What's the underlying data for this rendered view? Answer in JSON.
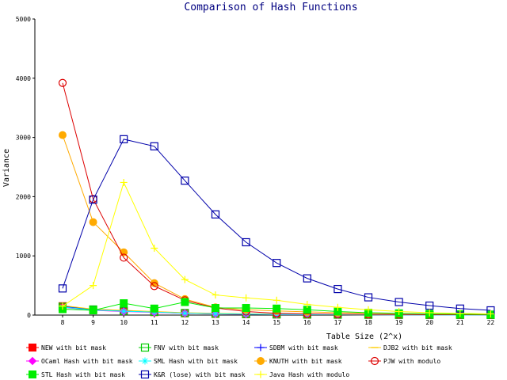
{
  "chart_data": {
    "type": "line",
    "title": "Comparison of Hash Functions",
    "xlabel": "Table Size (2^x)",
    "ylabel": "Variance",
    "x": [
      8,
      9,
      10,
      11,
      12,
      13,
      14,
      15,
      16,
      17,
      18,
      19,
      20,
      21,
      22
    ],
    "xticks": [
      "8",
      "9",
      "10",
      "11",
      "12",
      "13",
      "14",
      "15",
      "16",
      "17",
      "18",
      "19",
      "20",
      "21",
      "22"
    ],
    "yticks": [
      "0",
      "1000",
      "2000",
      "3000",
      "4000",
      "5000"
    ],
    "ylim": [
      0,
      5000
    ],
    "grid": false,
    "legend_position": "bottom",
    "series": [
      {
        "name": "NEW with bit mask",
        "color": "#ff0000",
        "marker": "filled-square",
        "values": [
          150,
          90,
          70,
          50,
          30,
          20,
          15,
          10,
          8,
          6,
          5,
          4,
          3,
          3,
          2
        ]
      },
      {
        "name": "FNV with bit mask",
        "color": "#00cc00",
        "marker": "open-square",
        "values": [
          140,
          95,
          70,
          55,
          35,
          25,
          18,
          12,
          9,
          7,
          5,
          4,
          3,
          3,
          2
        ]
      },
      {
        "name": "SDBM with bit mask",
        "color": "#0000ff",
        "marker": "plus",
        "values": [
          145,
          90,
          75,
          55,
          35,
          25,
          18,
          13,
          10,
          8,
          6,
          5,
          4,
          3,
          3
        ]
      },
      {
        "name": "DJB2 with bit mask",
        "color": "#ffcc00",
        "marker": "minus",
        "values": [
          160,
          100,
          80,
          60,
          40,
          30,
          22,
          16,
          12,
          9,
          7,
          5,
          4,
          3,
          3
        ]
      },
      {
        "name": "OCaml Hash with bit mask",
        "color": "#ff00ff",
        "marker": "diamond",
        "values": [
          130,
          80,
          60,
          45,
          30,
          20,
          15,
          10,
          8,
          6,
          5,
          4,
          3,
          2,
          2
        ]
      },
      {
        "name": "SML Hash with bit mask",
        "color": "#00ffff",
        "marker": "star",
        "values": [
          135,
          85,
          65,
          50,
          32,
          22,
          16,
          11,
          9,
          7,
          5,
          4,
          3,
          2,
          2
        ]
      },
      {
        "name": "KNUTH with bit mask",
        "color": "#ffaa00",
        "marker": "filled-circle",
        "values": [
          3040,
          1570,
          1060,
          540,
          270,
          130,
          90,
          70,
          55,
          40,
          30,
          25,
          20,
          15,
          10
        ]
      },
      {
        "name": "PJW with modulo",
        "color": "#dd0000",
        "marker": "open-circle",
        "values": [
          3920,
          1960,
          970,
          490,
          250,
          120,
          60,
          30,
          20,
          15,
          12,
          10,
          8,
          6,
          5
        ]
      },
      {
        "name": "STL Hash with bit mask",
        "color": "#00ee00",
        "marker": "filled-square",
        "values": [
          100,
          80,
          200,
          110,
          220,
          120,
          120,
          110,
          90,
          60,
          40,
          30,
          20,
          15,
          10
        ]
      },
      {
        "name": "K&R (lose) with bit mask",
        "color": "#0000aa",
        "marker": "open-square",
        "values": [
          450,
          1950,
          2970,
          2850,
          2270,
          1700,
          1230,
          880,
          620,
          440,
          300,
          220,
          160,
          110,
          80
        ]
      },
      {
        "name": "Java Hash with modulo",
        "color": "#ffff00",
        "marker": "plus",
        "values": [
          150,
          500,
          2240,
          1130,
          600,
          340,
          290,
          250,
          180,
          130,
          90,
          60,
          40,
          30,
          20
        ]
      }
    ]
  }
}
